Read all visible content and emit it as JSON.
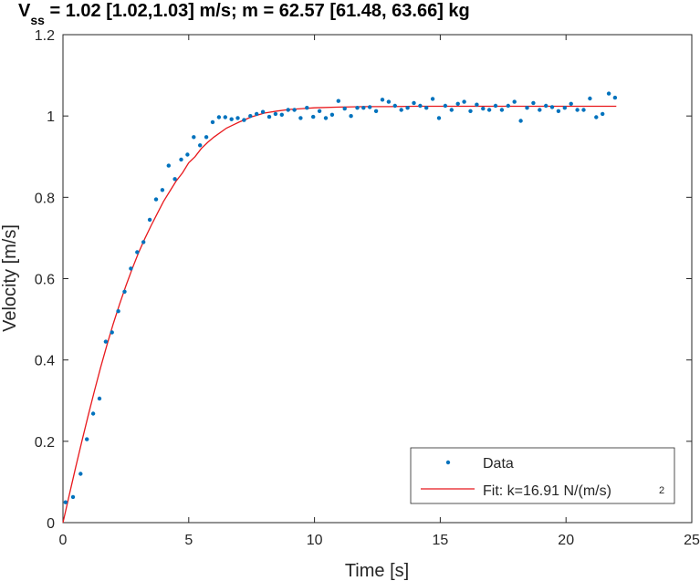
{
  "chart_data": {
    "type": "scatter",
    "title": {
      "prefix": "V",
      "subscript": "ss",
      "rest": " = 1.02 [1.02,1.03] m/s; m = 62.57 [61.48, 63.66] kg"
    },
    "xlabel": "Time [s]",
    "ylabel": "Velocity [m/s]",
    "xlim": [
      0,
      25
    ],
    "ylim": [
      0,
      1.2
    ],
    "xticks": [
      0,
      5,
      10,
      15,
      20,
      25
    ],
    "xtick_labels": [
      "0",
      "5",
      "10",
      "15",
      "20",
      "25"
    ],
    "yticks": [
      0,
      0.2,
      0.4,
      0.6,
      0.8,
      1,
      1.2
    ],
    "ytick_labels": [
      "0",
      "0.2",
      "0.4",
      "0.6",
      "0.8",
      "1",
      "1.2"
    ],
    "grid": false,
    "legend": {
      "position": "bottom-right",
      "entries": [
        {
          "label": "Data",
          "marker": "point"
        },
        {
          "label": "Fit: k=16.91 N/(m/s)",
          "superscript": "2",
          "marker": "line"
        }
      ]
    },
    "colors": {
      "data": "#0072BD",
      "fit": "#E8181C",
      "axes": "#262626"
    },
    "series": [
      {
        "name": "Data",
        "kind": "points",
        "x": [
          0.1,
          0.4,
          0.7,
          0.95,
          1.2,
          1.45,
          1.7,
          1.95,
          2.2,
          2.45,
          2.7,
          2.95,
          3.2,
          3.45,
          3.7,
          3.95,
          4.2,
          4.45,
          4.7,
          4.95,
          5.2,
          5.45,
          5.7,
          5.95,
          6.2,
          6.45,
          6.7,
          6.95,
          7.2,
          7.45,
          7.7,
          7.95,
          8.2,
          8.45,
          8.7,
          8.95,
          9.2,
          9.45,
          9.7,
          9.95,
          10.2,
          10.45,
          10.7,
          10.95,
          11.2,
          11.45,
          11.7,
          11.95,
          12.2,
          12.45,
          12.7,
          12.95,
          13.2,
          13.45,
          13.7,
          13.95,
          14.2,
          14.45,
          14.7,
          14.95,
          15.2,
          15.45,
          15.7,
          15.95,
          16.2,
          16.45,
          16.7,
          16.95,
          17.2,
          17.45,
          17.7,
          17.95,
          18.2,
          18.45,
          18.7,
          18.95,
          19.2,
          19.45,
          19.7,
          19.95,
          20.2,
          20.45,
          20.7,
          20.95,
          21.2,
          21.45,
          21.7,
          21.95
        ],
        "y": [
          0.05,
          0.063,
          0.12,
          0.205,
          0.268,
          0.305,
          0.445,
          0.468,
          0.52,
          0.568,
          0.625,
          0.665,
          0.69,
          0.745,
          0.795,
          0.818,
          0.878,
          0.845,
          0.893,
          0.905,
          0.948,
          0.928,
          0.948,
          0.985,
          0.997,
          0.997,
          0.992,
          0.995,
          0.99,
          1.0,
          1.005,
          1.01,
          0.998,
          1.005,
          1.003,
          1.015,
          1.015,
          0.995,
          1.02,
          0.998,
          1.012,
          0.995,
          1.003,
          1.037,
          1.018,
          1.0,
          1.02,
          1.02,
          1.022,
          1.012,
          1.04,
          1.035,
          1.025,
          1.015,
          1.02,
          1.032,
          1.025,
          1.02,
          1.042,
          0.995,
          1.025,
          1.015,
          1.03,
          1.035,
          1.012,
          1.028,
          1.018,
          1.015,
          1.025,
          1.015,
          1.025,
          1.035,
          0.988,
          1.02,
          1.032,
          1.015,
          1.025,
          1.022,
          1.012,
          1.02,
          1.03,
          1.015,
          1.015,
          1.043,
          0.997,
          1.005,
          1.055,
          1.045
        ]
      },
      {
        "name": "Fit: k=16.91 N/(m/s)^2",
        "kind": "curve",
        "x": [
          0,
          0.25,
          0.5,
          0.75,
          1,
          1.25,
          1.5,
          1.75,
          2,
          2.25,
          2.5,
          2.75,
          3,
          3.25,
          3.5,
          3.75,
          4,
          4.25,
          4.5,
          4.75,
          5,
          5.25,
          5.5,
          5.75,
          6,
          6.5,
          7,
          7.5,
          8,
          8.5,
          9,
          9.5,
          10,
          11,
          12,
          13,
          14,
          15,
          16,
          17,
          18,
          19,
          20,
          21,
          22
        ],
        "y": [
          0.0,
          0.068,
          0.135,
          0.2,
          0.263,
          0.324,
          0.382,
          0.437,
          0.489,
          0.537,
          0.582,
          0.624,
          0.663,
          0.698,
          0.73,
          0.76,
          0.79,
          0.815,
          0.84,
          0.86,
          0.885,
          0.9,
          0.92,
          0.935,
          0.948,
          0.97,
          0.985,
          0.998,
          1.007,
          1.012,
          1.016,
          1.018,
          1.02,
          1.022,
          1.023,
          1.023,
          1.024,
          1.024,
          1.024,
          1.024,
          1.024,
          1.024,
          1.024,
          1.024,
          1.024
        ]
      }
    ]
  }
}
